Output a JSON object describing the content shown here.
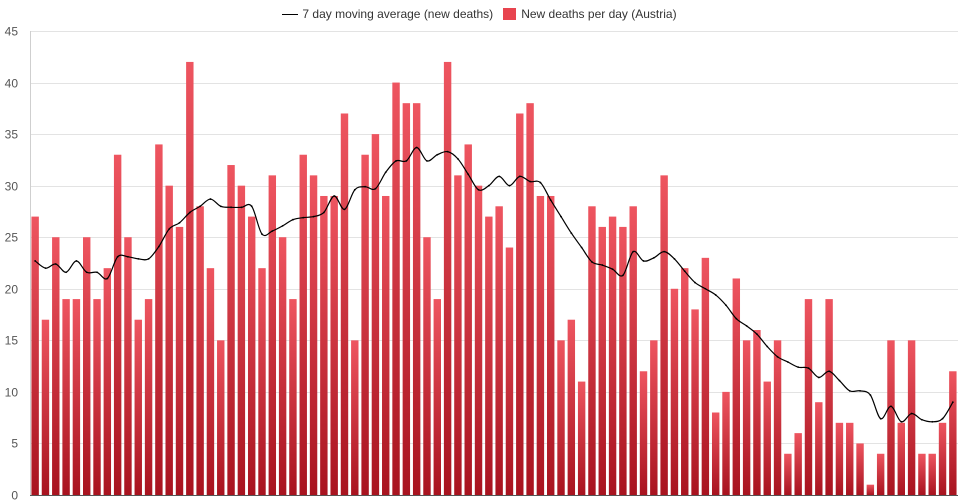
{
  "chart_data": {
    "type": "bar",
    "series": [
      {
        "name": "New deaths per day (Austria)",
        "kind": "bar",
        "color": "#e8444f",
        "values": [
          27,
          17,
          25,
          19,
          19,
          25,
          19,
          22,
          33,
          25,
          17,
          19,
          34,
          30,
          26,
          42,
          28,
          22,
          15,
          32,
          30,
          27,
          22,
          31,
          25,
          19,
          33,
          31,
          29,
          29,
          37,
          15,
          33,
          35,
          29,
          40,
          38,
          38,
          25,
          19,
          42,
          31,
          34,
          30,
          27,
          28,
          24,
          37,
          38,
          29,
          29,
          15,
          17,
          11,
          28,
          26,
          27,
          26,
          28,
          12,
          15,
          31,
          20,
          22,
          18,
          23,
          8,
          10,
          21,
          15,
          16,
          11,
          15,
          4,
          6,
          19,
          9,
          19,
          7,
          7,
          5,
          1,
          4,
          15,
          7,
          15,
          4,
          4,
          7,
          12
        ]
      },
      {
        "name": "7 day moving average (new deaths)",
        "kind": "line",
        "color": "#000000",
        "values": [
          22.7,
          22.0,
          22.4,
          21.6,
          22.7,
          21.6,
          21.6,
          21.0,
          23.1,
          23.1,
          22.9,
          22.9,
          24.1,
          25.8,
          26.4,
          27.4,
          28.0,
          28.7,
          28.0,
          27.9,
          27.9,
          28.0,
          25.3,
          25.6,
          26.1,
          26.7,
          26.9,
          27.0,
          27.4,
          29.0,
          27.7,
          29.6,
          29.9,
          29.7,
          31.3,
          32.4,
          32.4,
          33.7,
          32.4,
          33.0,
          33.3,
          32.6,
          31.1,
          29.6,
          30.0,
          30.9,
          30.0,
          30.9,
          30.4,
          30.3,
          28.6,
          27.0,
          25.4,
          24.0,
          22.6,
          22.3,
          21.9,
          21.3,
          23.6,
          22.7,
          23.0,
          23.6,
          22.9,
          21.7,
          20.6,
          20.0,
          19.4,
          18.4,
          17.1,
          16.4,
          15.6,
          14.4,
          13.4,
          12.9,
          12.4,
          12.3,
          11.4,
          12.0,
          11.1,
          10.1,
          10.1,
          9.7,
          7.4,
          8.6,
          7.1,
          7.9,
          7.3,
          7.1,
          7.4,
          9.0
        ]
      }
    ],
    "ylim": [
      0,
      45
    ],
    "yticks": [
      0,
      5,
      10,
      15,
      20,
      25,
      30,
      35,
      40,
      45
    ],
    "grid": true,
    "legend_position": "top-center",
    "legend_entries": [
      "7 day moving average (new deaths)",
      "New deaths per day (Austria)"
    ]
  }
}
